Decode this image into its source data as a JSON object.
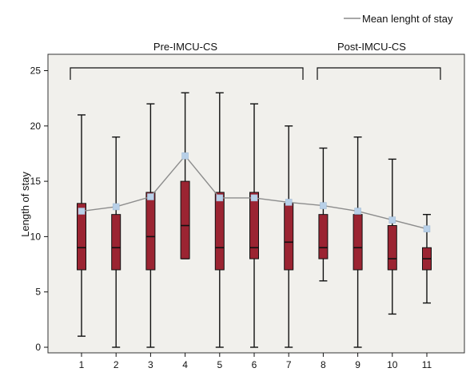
{
  "chart_data": {
    "type": "boxplot",
    "ylabel": "Length of stay",
    "ylim": [
      0,
      26
    ],
    "yticks": [
      0,
      5,
      10,
      15,
      20,
      25
    ],
    "categories": [
      "1",
      "2",
      "3",
      "4",
      "5",
      "6",
      "7",
      "8",
      "9",
      "10",
      "11"
    ],
    "boxes": [
      {
        "min": 1,
        "q1": 7,
        "median": 9,
        "q3": 13,
        "max": 21
      },
      {
        "min": 0,
        "q1": 7,
        "median": 9,
        "q3": 12,
        "max": 19
      },
      {
        "min": 0,
        "q1": 7,
        "median": 10,
        "q3": 14,
        "max": 22
      },
      {
        "min": 8,
        "q1": 8,
        "median": 11,
        "q3": 15,
        "max": 23
      },
      {
        "min": 0,
        "q1": 7,
        "median": 9,
        "q3": 14,
        "max": 23
      },
      {
        "min": 0,
        "q1": 8,
        "median": 9,
        "q3": 14,
        "max": 22
      },
      {
        "min": 0,
        "q1": 7,
        "median": 9.5,
        "q3": 13,
        "max": 20
      },
      {
        "min": 6,
        "q1": 8,
        "median": 9,
        "q3": 12,
        "max": 18
      },
      {
        "min": 0,
        "q1": 7,
        "median": 9,
        "q3": 12,
        "max": 19
      },
      {
        "min": 3,
        "q1": 7,
        "median": 8,
        "q3": 11,
        "max": 17
      },
      {
        "min": 4,
        "q1": 7,
        "median": 8,
        "q3": 9,
        "max": 12
      }
    ],
    "mean_series": {
      "name": "Mean lenght of stay",
      "values": [
        12.3,
        12.7,
        13.6,
        17.3,
        13.5,
        13.5,
        13.1,
        12.8,
        12.3,
        11.5,
        10.7
      ]
    },
    "groups": [
      {
        "label": "Pre-IMCU-CS",
        "from": 1,
        "to": 7
      },
      {
        "label": "Post-IMCU-CS",
        "from": 8,
        "to": 11
      }
    ],
    "legend_position": "top-right",
    "colors": {
      "box_fill": "#9b2432",
      "mean_line": "#8c8c8c",
      "mean_marker": "#b8d0e8",
      "plot_bg": "#f1f0ec"
    }
  }
}
